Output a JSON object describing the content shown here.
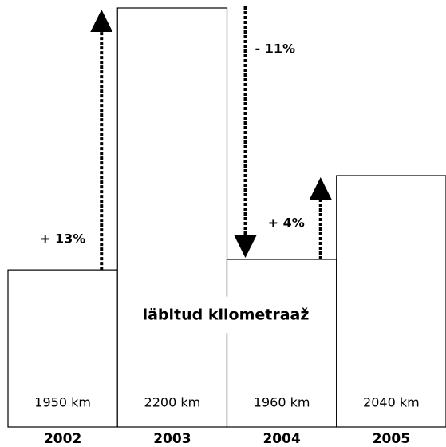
{
  "chart_data": {
    "type": "bar",
    "title": "läbitud kilometraaž",
    "categories": [
      "2002",
      "2003",
      "2004",
      "2005"
    ],
    "values": [
      1950,
      2200,
      1960,
      2040
    ],
    "value_labels": [
      "1950 km",
      "2200 km",
      "1960 km",
      "2040 km"
    ],
    "color": "#ffffff",
    "ylim": [
      1800,
      2200
    ],
    "annotations": [
      {
        "text": "+ 13%",
        "from": 0,
        "to": 1
      },
      {
        "text": "- 11%",
        "from": 1,
        "to": 2
      },
      {
        "text": "+ 4%",
        "from": 2,
        "to": 3
      }
    ]
  }
}
